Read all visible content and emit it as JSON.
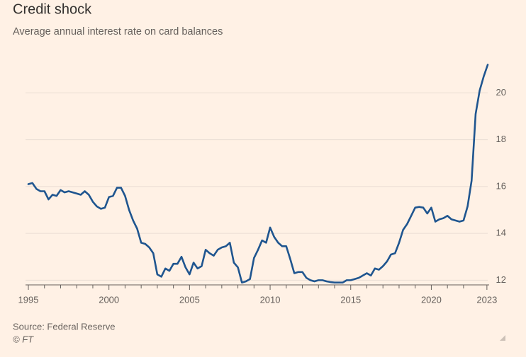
{
  "chart_data": {
    "type": "line",
    "title": "Credit shock",
    "subtitle": "Average annual interest rate on card balances",
    "source": "Source: Federal Reserve",
    "credit": "© FT",
    "xlim": [
      1995,
      2023.5
    ],
    "ylim": [
      11.8,
      21.4
    ],
    "xticks": [
      1995,
      2000,
      2005,
      2010,
      2015,
      2020,
      {
        "value": 2023.45,
        "label": "2023"
      }
    ],
    "xminorticks": [
      1996,
      1997,
      1998,
      1999,
      2001,
      2002,
      2003,
      2004,
      2006,
      2007,
      2008,
      2009,
      2011,
      2012,
      2013,
      2014,
      2016,
      2017,
      2018,
      2019,
      2021,
      2022
    ],
    "yticks": [
      12,
      14,
      16,
      18,
      20
    ],
    "grid": true,
    "x": [
      1995.0,
      1995.25,
      1995.5,
      1995.75,
      1996.0,
      1996.25,
      1996.5,
      1996.75,
      1997.0,
      1997.25,
      1997.5,
      1997.75,
      1998.0,
      1998.25,
      1998.5,
      1998.75,
      1999.0,
      1999.25,
      1999.5,
      1999.75,
      2000.0,
      2000.25,
      2000.5,
      2000.75,
      2001.0,
      2001.25,
      2001.5,
      2001.75,
      2002.0,
      2002.25,
      2002.5,
      2002.75,
      2003.0,
      2003.25,
      2003.5,
      2003.75,
      2004.0,
      2004.25,
      2004.5,
      2004.75,
      2005.0,
      2005.25,
      2005.5,
      2005.75,
      2006.0,
      2006.25,
      2006.5,
      2006.75,
      2007.0,
      2007.25,
      2007.5,
      2007.75,
      2008.0,
      2008.25,
      2008.5,
      2008.75,
      2009.0,
      2009.25,
      2009.5,
      2009.75,
      2010.0,
      2010.25,
      2010.5,
      2010.75,
      2011.0,
      2011.25,
      2011.5,
      2011.75,
      2012.0,
      2012.25,
      2012.5,
      2012.75,
      2013.0,
      2013.25,
      2013.5,
      2013.75,
      2014.0,
      2014.25,
      2014.5,
      2014.75,
      2015.0,
      2015.25,
      2015.5,
      2015.75,
      2016.0,
      2016.25,
      2016.5,
      2016.75,
      2017.0,
      2017.25,
      2017.5,
      2017.75,
      2018.0,
      2018.25,
      2018.5,
      2018.75,
      2019.0,
      2019.25,
      2019.5,
      2019.75,
      2020.0,
      2020.25,
      2020.5,
      2020.75,
      2021.0,
      2021.25,
      2021.5,
      2021.75,
      2022.0,
      2022.25,
      2022.5,
      2022.75,
      2023.0,
      2023.25,
      2023.5
    ],
    "series": [
      {
        "name": "Interest rate",
        "color": "#1f558f",
        "values": [
          16.1,
          16.15,
          15.9,
          15.8,
          15.8,
          15.45,
          15.65,
          15.6,
          15.85,
          15.75,
          15.8,
          15.75,
          15.7,
          15.65,
          15.8,
          15.65,
          15.35,
          15.15,
          15.05,
          15.1,
          15.55,
          15.6,
          15.95,
          15.95,
          15.6,
          15.0,
          14.55,
          14.2,
          13.6,
          13.55,
          13.4,
          13.15,
          12.25,
          12.15,
          12.5,
          12.4,
          12.7,
          12.7,
          13.0,
          12.55,
          12.25,
          12.75,
          12.5,
          12.6,
          13.3,
          13.15,
          13.05,
          13.3,
          13.4,
          13.45,
          13.6,
          12.75,
          12.55,
          11.9,
          11.95,
          12.05,
          12.95,
          13.3,
          13.7,
          13.6,
          14.25,
          13.85,
          13.6,
          13.45,
          13.45,
          12.9,
          12.3,
          12.35,
          12.35,
          12.1,
          12.0,
          11.95,
          12.0,
          12.0,
          11.95,
          11.92,
          11.9,
          11.9,
          11.9,
          12.0,
          12.0,
          12.05,
          12.1,
          12.2,
          12.3,
          12.2,
          12.5,
          12.45,
          12.6,
          12.8,
          13.1,
          13.15,
          13.6,
          14.15,
          14.4,
          14.75,
          15.1,
          15.13,
          15.1,
          14.85,
          15.1,
          14.5,
          14.6,
          14.65,
          14.75,
          14.6,
          14.55,
          14.5,
          14.55,
          15.15,
          16.25,
          19.1,
          20.1,
          20.7,
          21.2
        ]
      }
    ]
  }
}
